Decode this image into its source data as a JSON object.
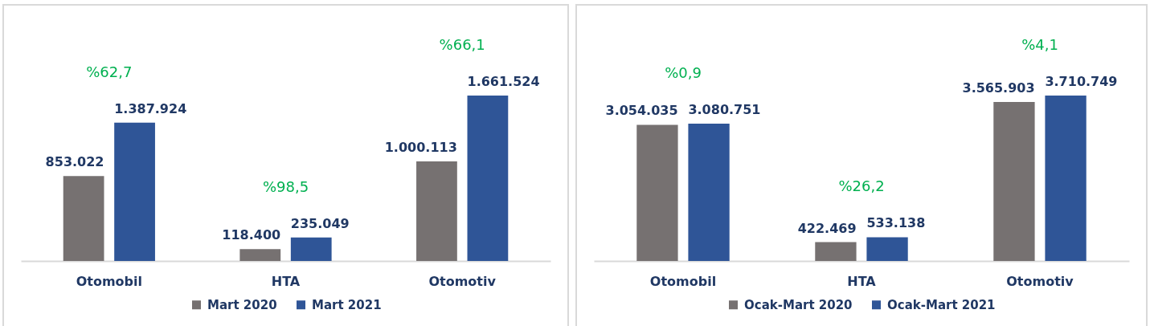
{
  "chart_data": [
    {
      "type": "bar",
      "categories": [
        "Otomobil",
        "HTA",
        "Otomotiv"
      ],
      "series": [
        {
          "name": "Mart 2020",
          "color": "#767171",
          "values": [
            853022,
            118400,
            1000113
          ],
          "value_labels": [
            "853.022",
            "118.400",
            "1.000.113"
          ]
        },
        {
          "name": "Mart 2021",
          "color": "#2f5597",
          "values": [
            1387924,
            235049,
            1661524
          ],
          "value_labels": [
            "1.387.924",
            "235.049",
            "1.661.524"
          ]
        }
      ],
      "legend": "bottom",
      "tick_labels": "x",
      "annotations": [
        "%62,7",
        "%98,5",
        "%66,1"
      ]
    },
    {
      "type": "bar",
      "categories": [
        "Otomobil",
        "HTA",
        "Otomotiv"
      ],
      "series": [
        {
          "name": "Ocak-Mart 2020",
          "color": "#767171",
          "values": [
            3054035,
            422469,
            3565903
          ],
          "value_labels": [
            "3.054.035",
            "422.469",
            "3.565.903"
          ]
        },
        {
          "name": "Ocak-Mart 2021",
          "color": "#2f5597",
          "values": [
            3080751,
            533138,
            3710749
          ],
          "value_labels": [
            "3.080.751",
            "533.138",
            "3.710.749"
          ]
        }
      ],
      "legend": "bottom",
      "tick_labels": "x",
      "annotations": [
        "%0,9",
        "%26,2",
        "%4,1"
      ]
    }
  ]
}
